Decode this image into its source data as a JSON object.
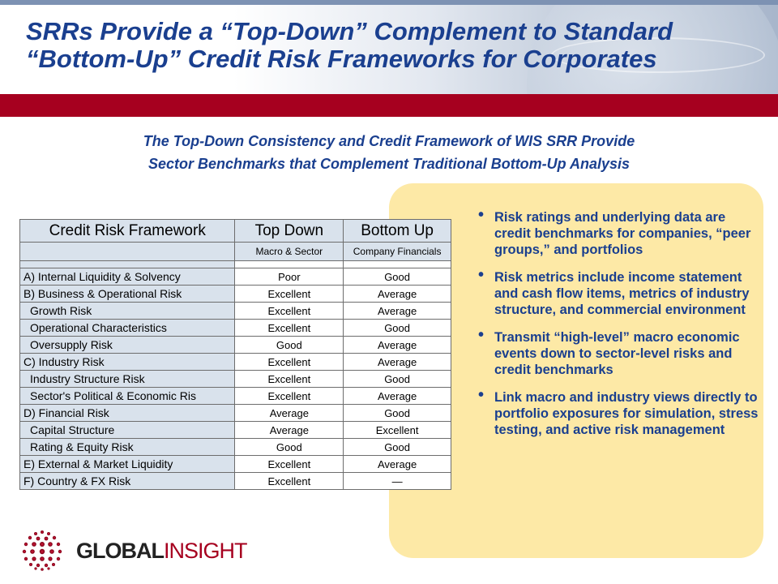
{
  "slide": {
    "title_line1": "SRRs Provide a “Top-Down” Complement to Standard",
    "title_line2": "“Bottom-Up” Credit Risk Frameworks for Corporates",
    "subtitle_line1": "The Top-Down Consistency and Credit Framework of WIS SRR Provide",
    "subtitle_line2": "Sector Benchmarks that Complement Traditional Bottom-Up Analysis"
  },
  "table": {
    "header": {
      "col1": "Credit Risk Framework",
      "col2": "Top Down",
      "col3": "Bottom Up"
    },
    "subheader": {
      "col2": "Macro & Sector",
      "col3": "Company Financials"
    },
    "rows": [
      {
        "label": "A) Internal Liquidity & Solvency",
        "top_down": "Poor",
        "bottom_up": "Good"
      },
      {
        "label": "B) Business & Operational Risk",
        "top_down": "Excellent",
        "bottom_up": "Average"
      },
      {
        "label": "Growth Risk",
        "top_down": "Excellent",
        "bottom_up": "Average"
      },
      {
        "label": "Operational Characteristics",
        "top_down": "Excellent",
        "bottom_up": "Good"
      },
      {
        "label": "Oversupply Risk",
        "top_down": "Good",
        "bottom_up": "Average"
      },
      {
        "label": "C) Industry Risk",
        "top_down": "Excellent",
        "bottom_up": "Average"
      },
      {
        "label": "Industry Structure Risk",
        "top_down": "Excellent",
        "bottom_up": "Good"
      },
      {
        "label": "Sector's Political & Economic Ris",
        "top_down": "Excellent",
        "bottom_up": "Average"
      },
      {
        "label": "D) Financial Risk",
        "top_down": "Average",
        "bottom_up": "Good"
      },
      {
        "label": "Capital Structure",
        "top_down": "Average",
        "bottom_up": "Excellent"
      },
      {
        "label": "Rating & Equity Risk",
        "top_down": "Good",
        "bottom_up": "Good"
      },
      {
        "label": "E) External & Market Liquidity",
        "top_down": "Excellent",
        "bottom_up": "Average"
      },
      {
        "label": "F) Country & FX Risk",
        "top_down": "Excellent",
        "bottom_up": "—"
      }
    ]
  },
  "bullets": [
    "Risk ratings and underlying data are credit benchmarks for companies, “peer groups,” and portfolios",
    "Risk metrics include income statement and cash flow items, metrics of industry structure, and commercial environment",
    "Transmit “high-level” macro economic events down to sector-level risks and credit benchmarks",
    "Link macro and industry views directly to portfolio exposures for simulation, stress testing, and active risk management"
  ],
  "logo": {
    "global": "GLOBAL",
    "insight": "INSIGHT",
    "icon": "dotted-globe-icon"
  },
  "colors": {
    "title": "#1a3f8f",
    "red_bar": "#a6001f",
    "panel": "#fde9a6",
    "label_cell": "#d9e2ec"
  }
}
